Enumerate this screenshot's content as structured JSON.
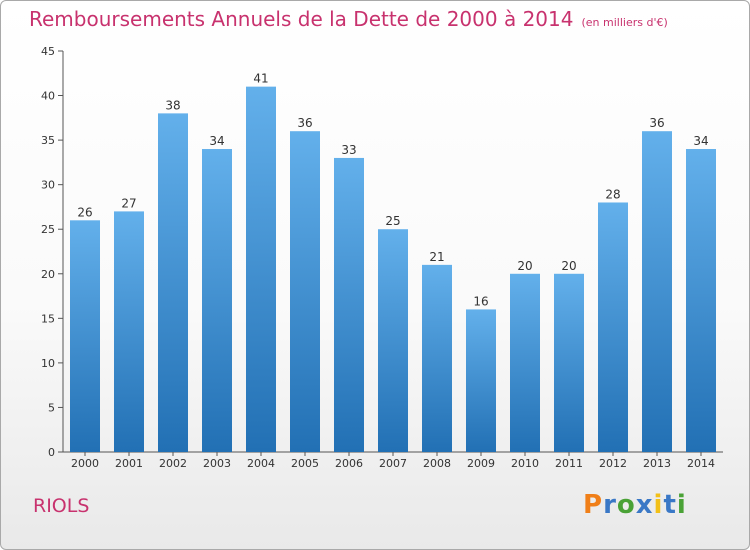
{
  "header": {
    "title": "Remboursements Annuels de la Dette de 2000 à 2014",
    "subtitle": "(en milliers d'€)"
  },
  "commune": "RIOLS",
  "logo": {
    "text": "Proxiti",
    "letter_colors": [
      "#f07f18",
      "#3a78c6",
      "#4aa236",
      "#3a78c6",
      "#f2c018",
      "#3a78c6",
      "#4aa236"
    ]
  },
  "colors": {
    "title": "#c8326e",
    "bar_top": "#63b0eb",
    "bar_bottom": "#2270b4"
  },
  "chart_data": {
    "type": "bar",
    "categories": [
      "2000",
      "2001",
      "2002",
      "2003",
      "2004",
      "2005",
      "2006",
      "2007",
      "2008",
      "2009",
      "2010",
      "2011",
      "2012",
      "2013",
      "2014"
    ],
    "values": [
      26,
      27,
      38,
      34,
      41,
      36,
      33,
      25,
      21,
      16,
      20,
      20,
      28,
      36,
      34
    ],
    "yticks": [
      0,
      5,
      10,
      15,
      20,
      25,
      30,
      35,
      40,
      45
    ],
    "ylim": [
      0,
      45
    ],
    "grid": false,
    "legend": "none"
  }
}
